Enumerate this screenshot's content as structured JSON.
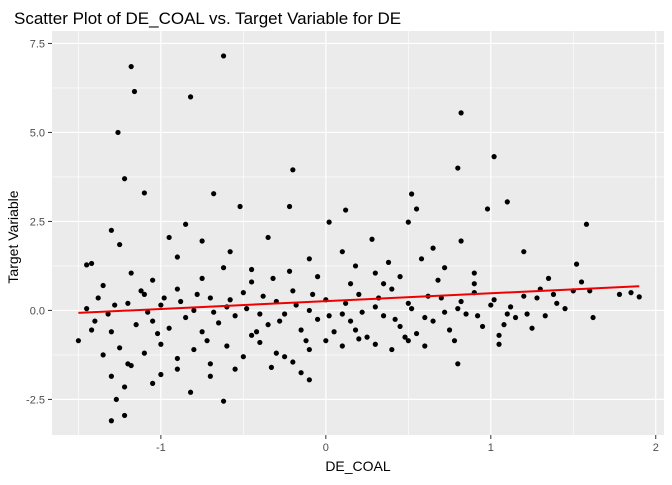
{
  "chart_data": {
    "type": "scatter",
    "title": "Scatter Plot of DE_COAL vs. Target Variable for DE",
    "xlabel": "DE_COAL",
    "ylabel": "Target Variable",
    "xlim": [
      -1.66,
      2.05
    ],
    "ylim": [
      -3.5,
      7.85
    ],
    "x_ticks": [
      -1,
      0,
      1,
      2
    ],
    "x_tick_labels": [
      "-1",
      "0",
      "1",
      "2"
    ],
    "y_ticks": [
      -2.5,
      0.0,
      2.5,
      5.0,
      7.5
    ],
    "y_tick_labels": [
      "-2.5",
      "0.0",
      "2.5",
      "5.0",
      "7.5"
    ],
    "grid": true,
    "panel_background": "#ebebeb",
    "grid_color": "#ffffff",
    "point_color": "#000000",
    "trend_line": {
      "color": "#ee0000",
      "x": [
        -1.5,
        1.9
      ],
      "y": [
        -0.07,
        0.68
      ]
    },
    "points": [
      [
        -0.62,
        7.15
      ],
      [
        -1.18,
        6.85
      ],
      [
        -1.16,
        6.15
      ],
      [
        -0.82,
        6.0
      ],
      [
        -1.26,
        5.0
      ],
      [
        0.82,
        5.55
      ],
      [
        1.02,
        4.32
      ],
      [
        0.8,
        4.0
      ],
      [
        -0.2,
        3.95
      ],
      [
        -1.22,
        3.7
      ],
      [
        -1.1,
        3.3
      ],
      [
        -0.68,
        3.28
      ],
      [
        0.52,
        3.27
      ],
      [
        -0.52,
        2.92
      ],
      [
        0.55,
        2.85
      ],
      [
        1.1,
        3.05
      ],
      [
        -0.22,
        2.92
      ],
      [
        0.12,
        2.82
      ],
      [
        0.98,
        2.85
      ],
      [
        -0.85,
        2.42
      ],
      [
        0.02,
        2.48
      ],
      [
        -1.3,
        2.25
      ],
      [
        0.5,
        2.48
      ],
      [
        1.58,
        2.42
      ],
      [
        -0.95,
        2.05
      ],
      [
        0.28,
        2.0
      ],
      [
        -0.35,
        2.05
      ],
      [
        0.82,
        1.95
      ],
      [
        -1.25,
        1.85
      ],
      [
        -0.75,
        1.95
      ],
      [
        -1.42,
        1.32
      ],
      [
        -1.45,
        1.28
      ],
      [
        1.52,
        1.3
      ],
      [
        -0.58,
        1.65
      ],
      [
        0.65,
        1.75
      ],
      [
        1.2,
        1.65
      ],
      [
        0.1,
        1.65
      ],
      [
        -0.1,
        1.45
      ],
      [
        0.38,
        1.35
      ],
      [
        -0.9,
        1.5
      ],
      [
        -1.18,
        1.05
      ],
      [
        -1.05,
        0.85
      ],
      [
        -0.45,
        1.15
      ],
      [
        0.45,
        0.95
      ],
      [
        0.9,
        1.05
      ],
      [
        1.35,
        0.9
      ],
      [
        -1.35,
        0.7
      ],
      [
        1.6,
        0.55
      ],
      [
        1.78,
        0.45
      ],
      [
        1.9,
        0.38
      ],
      [
        -1.2,
        0.2
      ],
      [
        -1.1,
        0.45
      ],
      [
        -1.0,
        0.15
      ],
      [
        -0.9,
        0.6
      ],
      [
        -0.8,
        0.0
      ],
      [
        -0.7,
        0.35
      ],
      [
        -0.6,
        0.1
      ],
      [
        -0.5,
        0.5
      ],
      [
        -0.4,
        -0.1
      ],
      [
        -0.3,
        0.25
      ],
      [
        -0.2,
        0.55
      ],
      [
        -0.1,
        0.0
      ],
      [
        0.0,
        0.3
      ],
      [
        0.1,
        -0.1
      ],
      [
        0.2,
        0.45
      ],
      [
        0.3,
        0.1
      ],
      [
        0.4,
        0.6
      ],
      [
        0.5,
        0.2
      ],
      [
        0.6,
        -0.2
      ],
      [
        0.7,
        0.35
      ],
      [
        0.8,
        0.05
      ],
      [
        0.9,
        0.5
      ],
      [
        1.0,
        0.15
      ],
      [
        1.1,
        -0.1
      ],
      [
        1.2,
        0.4
      ],
      [
        1.3,
        0.6
      ],
      [
        1.4,
        0.2
      ],
      [
        1.5,
        0.55
      ],
      [
        -1.15,
        -0.4
      ],
      [
        -1.05,
        -0.3
      ],
      [
        -0.95,
        -0.5
      ],
      [
        -0.85,
        -0.2
      ],
      [
        -0.75,
        -0.6
      ],
      [
        -0.65,
        -0.35
      ],
      [
        -0.55,
        -0.15
      ],
      [
        -0.45,
        -0.7
      ],
      [
        -0.35,
        -0.4
      ],
      [
        -0.25,
        -0.1
      ],
      [
        -0.15,
        -0.55
      ],
      [
        -0.05,
        -0.25
      ],
      [
        0.05,
        -0.6
      ],
      [
        0.15,
        -0.3
      ],
      [
        0.25,
        -0.75
      ],
      [
        0.35,
        -0.15
      ],
      [
        0.45,
        -0.45
      ],
      [
        0.55,
        -0.65
      ],
      [
        0.65,
        -0.3
      ],
      [
        0.75,
        -0.55
      ],
      [
        0.85,
        -0.1
      ],
      [
        0.95,
        -0.45
      ],
      [
        1.05,
        -0.7
      ],
      [
        1.15,
        -0.2
      ],
      [
        1.25,
        -0.5
      ],
      [
        -1.3,
        -0.6
      ],
      [
        -1.4,
        -0.3
      ],
      [
        -1.45,
        0.05
      ],
      [
        -1.5,
        -0.85
      ],
      [
        -1.35,
        -1.25
      ],
      [
        -1.25,
        -1.05
      ],
      [
        -1.2,
        -1.5
      ],
      [
        -1.1,
        -1.2
      ],
      [
        -1.0,
        -0.95
      ],
      [
        -0.9,
        -1.35
      ],
      [
        -0.8,
        -1.1
      ],
      [
        -0.7,
        -1.5
      ],
      [
        -0.6,
        -1.0
      ],
      [
        -0.5,
        -1.3
      ],
      [
        -0.4,
        -0.9
      ],
      [
        -0.3,
        -1.2
      ],
      [
        -0.2,
        -1.45
      ],
      [
        -0.1,
        -1.1
      ],
      [
        0.0,
        -0.85
      ],
      [
        0.1,
        -1.0
      ],
      [
        0.2,
        -0.8
      ],
      [
        0.3,
        -0.95
      ],
      [
        0.4,
        -1.1
      ],
      [
        0.5,
        -0.85
      ],
      [
        0.6,
        -1.0
      ],
      [
        0.8,
        -1.5
      ],
      [
        1.05,
        -0.95
      ],
      [
        -1.3,
        -3.1
      ],
      [
        -1.22,
        -2.95
      ],
      [
        -1.27,
        -2.5
      ],
      [
        -1.22,
        -2.15
      ],
      [
        -1.3,
        -1.85
      ],
      [
        -0.82,
        -2.3
      ],
      [
        -0.62,
        -2.55
      ],
      [
        -1.0,
        -1.8
      ],
      [
        -1.05,
        -2.05
      ],
      [
        -0.9,
        -1.65
      ],
      [
        -0.1,
        -1.95
      ],
      [
        -0.15,
        -1.75
      ],
      [
        -0.55,
        -1.65
      ],
      [
        -0.7,
        -1.85
      ],
      [
        -1.18,
        -1.55
      ],
      [
        -0.33,
        -1.6
      ],
      [
        -0.25,
        -1.3
      ],
      [
        1.62,
        -0.2
      ],
      [
        1.85,
        0.5
      ],
      [
        0.3,
        1.05
      ],
      [
        0.9,
        0.75
      ],
      [
        -0.05,
        0.95
      ],
      [
        0.68,
        0.85
      ],
      [
        -0.62,
        1.2
      ],
      [
        -0.32,
        0.9
      ],
      [
        -0.22,
        1.1
      ],
      [
        0.15,
        0.75
      ],
      [
        0.58,
        1.45
      ],
      [
        1.28,
        0.35
      ],
      [
        1.45,
        0.05
      ],
      [
        1.55,
        0.8
      ],
      [
        1.33,
        -0.15
      ],
      [
        -1.38,
        0.35
      ],
      [
        -1.32,
        -0.1
      ],
      [
        -1.28,
        0.15
      ],
      [
        -1.08,
        -0.05
      ],
      [
        -0.98,
        0.35
      ],
      [
        -0.88,
        0.25
      ],
      [
        -0.78,
        0.45
      ],
      [
        -0.68,
        -0.05
      ],
      [
        -0.58,
        0.3
      ],
      [
        -0.48,
        0.05
      ],
      [
        -0.38,
        0.4
      ],
      [
        -0.28,
        -0.3
      ],
      [
        -0.18,
        0.15
      ],
      [
        -0.08,
        0.45
      ],
      [
        0.02,
        -0.15
      ],
      [
        0.12,
        0.2
      ],
      [
        0.22,
        -0.05
      ],
      [
        0.32,
        0.35
      ],
      [
        0.42,
        -0.25
      ],
      [
        0.52,
        0.05
      ],
      [
        0.62,
        0.4
      ],
      [
        0.72,
        -0.05
      ],
      [
        0.82,
        0.25
      ],
      [
        0.92,
        -0.15
      ],
      [
        1.02,
        0.3
      ],
      [
        1.12,
        0.1
      ],
      [
        1.22,
        -0.1
      ],
      [
        0.72,
        1.2
      ],
      [
        0.35,
        0.75
      ],
      [
        -0.45,
        0.8
      ],
      [
        -0.75,
        0.9
      ],
      [
        -1.12,
        0.55
      ],
      [
        -1.42,
        -0.55
      ],
      [
        -1.02,
        -0.65
      ],
      [
        -0.72,
        -0.85
      ],
      [
        -0.42,
        -0.6
      ],
      [
        -0.12,
        -0.85
      ],
      [
        0.18,
        -0.55
      ],
      [
        0.48,
        -0.75
      ],
      [
        0.78,
        -0.85
      ],
      [
        1.08,
        -0.4
      ],
      [
        1.38,
        0.45
      ],
      [
        0.18,
        1.25
      ]
    ]
  }
}
